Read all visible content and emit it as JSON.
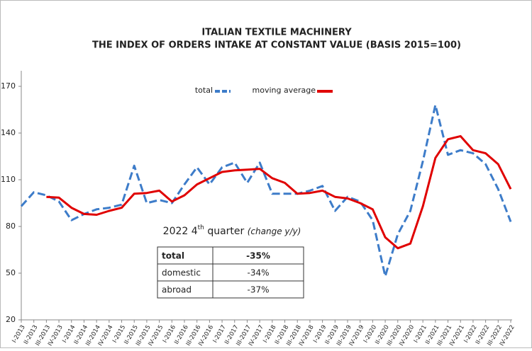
{
  "chart_data": {
    "type": "line",
    "title": [
      "ITALIAN TEXTILE MACHINERY",
      "THE INDEX OF ORDERS INTAKE AT CONSTANT VALUE (BASIS 2015=100)"
    ],
    "categories": [
      "I-2013",
      "II-2013",
      "III-2013",
      "IV-2013",
      "I-2014",
      "II-2014",
      "III-2014",
      "IV-2014",
      "I-2015",
      "II-2015",
      "III-2015",
      "IV-2015",
      "I-2016",
      "II-2016",
      "III-2016",
      "IV-2016",
      "I-2017",
      "II-2017",
      "III-2017",
      "IV-2017",
      "I-2018",
      "II-2018",
      "III-2018",
      "IV-2018",
      "I-2019",
      "II-2019",
      "III-2019",
      "IV-2019",
      "I-2020",
      "II-2020",
      "III-2020",
      "IV-2020",
      "I-2021",
      "II-2021",
      "III-2021",
      "IV-2021",
      "I-2022",
      "II-2022",
      "III-2022",
      "IV-2022"
    ],
    "series": [
      {
        "name": "total",
        "color": "#3d7cc9",
        "dashed": true,
        "values": [
          93,
          102,
          100,
          96,
          84,
          88,
          91,
          92,
          94,
          119,
          95,
          97,
          95,
          107,
          118,
          107,
          118,
          121,
          108,
          121,
          101,
          101,
          101,
          103,
          106,
          90,
          99,
          96,
          84,
          48,
          75,
          90,
          122,
          158,
          126,
          129,
          127,
          120,
          104,
          83
        ]
      },
      {
        "name": "moving average",
        "color": "#e00000",
        "dashed": false,
        "values": [
          null,
          null,
          99,
          98.5,
          92,
          88,
          87.5,
          90,
          92,
          101,
          101.5,
          103,
          96,
          100,
          107,
          111,
          115,
          116,
          116.5,
          117,
          111,
          108,
          101,
          101.5,
          103,
          99,
          98,
          95,
          91,
          73,
          66,
          69,
          93,
          124,
          136,
          138,
          129,
          127,
          120,
          104
        ]
      }
    ],
    "ylim": [
      20,
      180
    ],
    "yticks": [
      20,
      50,
      80,
      110,
      140,
      170
    ],
    "annotation_table": {
      "title": {
        "year": "2022 4",
        "sup": "th",
        "main": " quarter",
        "note": "(change y/y)"
      },
      "rows": [
        [
          "total",
          "-35%"
        ],
        [
          "domestic",
          "-34%"
        ],
        [
          "abroad",
          "-37%"
        ]
      ]
    }
  }
}
